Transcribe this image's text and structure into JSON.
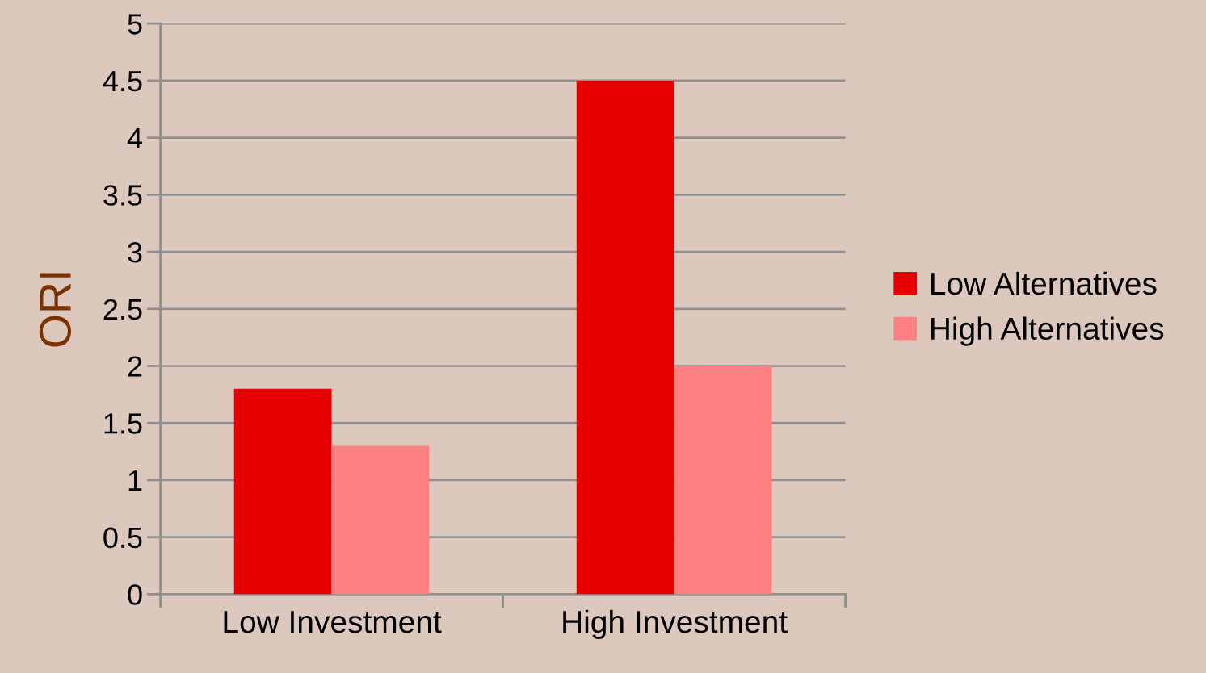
{
  "chart_data": {
    "type": "bar",
    "ylabel": "ORI",
    "categories": [
      "Low Investment",
      "High Investment"
    ],
    "series": [
      {
        "name": "Low Alternatives",
        "color": "#e60000",
        "values": [
          1.8,
          4.5
        ]
      },
      {
        "name": "High Alternatives",
        "color": "#ff8080",
        "values": [
          1.3,
          2.0
        ]
      }
    ],
    "ylim": [
      0,
      5
    ],
    "yticks": [
      0,
      0.5,
      1,
      1.5,
      2,
      2.5,
      3,
      3.5,
      4,
      4.5,
      5
    ],
    "grid": "y",
    "legend": "right"
  }
}
